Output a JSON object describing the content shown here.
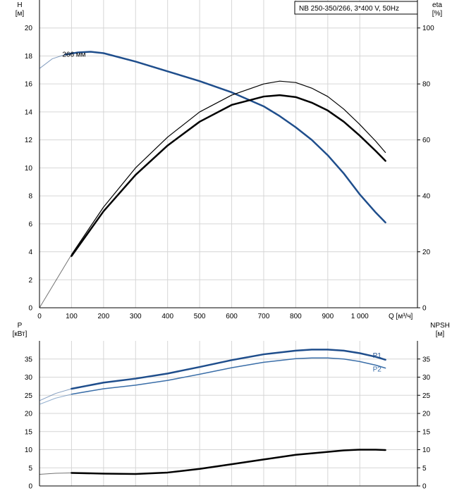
{
  "legend_text": "NB 250-350/266, 3*400 V, 50Hz",
  "chart_data": [
    {
      "type": "line",
      "x_label": "Q [м³/ч]",
      "x_ticks": [
        "0",
        "100",
        "200",
        "300",
        "400",
        "500",
        "600",
        "700",
        "800",
        "900",
        "1 000"
      ],
      "xlim": [
        0,
        1180
      ],
      "grid": true,
      "left_axis": {
        "label": [
          "H",
          "[м]"
        ],
        "ylim": [
          0,
          22
        ],
        "ticks": [
          0,
          2,
          4,
          6,
          8,
          10,
          12,
          14,
          16,
          18,
          20
        ]
      },
      "right_axis": {
        "label": [
          "eta",
          "[%]"
        ],
        "ylim": [
          0,
          110
        ],
        "ticks": [
          0,
          20,
          40,
          60,
          80,
          100
        ]
      },
      "series": [
        {
          "name": "266 мм",
          "axis": "left",
          "color": "#1f4e8c",
          "width": 2.5,
          "extension_left": {
            "x": [
              0,
              40,
              80
            ],
            "y": [
              17.1,
              17.8,
              18.1
            ]
          },
          "x": [
            80,
            120,
            160,
            200,
            300,
            400,
            500,
            600,
            700,
            750,
            800,
            850,
            900,
            950,
            1000,
            1050,
            1080
          ],
          "y": [
            18.1,
            18.25,
            18.3,
            18.2,
            17.6,
            16.9,
            16.2,
            15.4,
            14.4,
            13.7,
            12.9,
            12.0,
            10.9,
            9.6,
            8.1,
            6.8,
            6.1
          ]
        },
        {
          "axis": "right",
          "color": "#000000",
          "width": 1.2,
          "extension_left": {
            "x": [
              0,
              100
            ],
            "y": [
              0,
              19
            ]
          },
          "x": [
            100,
            200,
            300,
            400,
            500,
            600,
            700,
            750,
            800,
            850,
            900,
            950,
            1000,
            1050,
            1080
          ],
          "y": [
            19,
            36,
            50,
            61,
            70,
            76,
            80,
            81,
            80.5,
            78.5,
            75.5,
            71,
            65.5,
            59.5,
            55.5
          ]
        },
        {
          "axis": "right",
          "color": "#000000",
          "width": 2.5,
          "x": [
            100,
            200,
            300,
            400,
            500,
            600,
            700,
            750,
            800,
            850,
            900,
            950,
            1000,
            1050,
            1080
          ],
          "y": [
            18.5,
            34.5,
            47.5,
            58,
            66.5,
            72.5,
            75.5,
            76,
            75.3,
            73.3,
            70.5,
            66.5,
            61.5,
            56,
            52.5
          ]
        }
      ]
    },
    {
      "type": "line",
      "x_ticks": [
        "0",
        "100",
        "200",
        "300",
        "400",
        "500",
        "600",
        "700",
        "800",
        "900",
        "1 000"
      ],
      "xlim": [
        0,
        1180
      ],
      "grid": true,
      "left_axis": {
        "label": [
          "P",
          "[кВт]"
        ],
        "ylim": [
          0,
          40
        ],
        "ticks": [
          0,
          5,
          10,
          15,
          20,
          25,
          30,
          35
        ]
      },
      "right_axis": {
        "label": [
          "NPSH",
          "[м]"
        ],
        "ylim": [
          0,
          40
        ],
        "ticks": [
          0,
          5,
          10,
          15,
          20,
          25,
          30,
          35
        ]
      },
      "series": [
        {
          "name": "P1",
          "axis": "left",
          "color": "#1f4e8c",
          "width": 2.5,
          "label_color": "#1f4e8c",
          "extension_left": {
            "x": [
              0,
              50,
              100
            ],
            "y": [
              23.5,
              25.5,
              26.8
            ]
          },
          "x": [
            100,
            200,
            300,
            400,
            500,
            600,
            700,
            800,
            850,
            900,
            950,
            1000,
            1050,
            1080
          ],
          "y": [
            26.8,
            28.5,
            29.6,
            31,
            32.8,
            34.7,
            36.3,
            37.3,
            37.6,
            37.6,
            37.3,
            36.6,
            35.6,
            34.8
          ]
        },
        {
          "name": "P2",
          "axis": "left",
          "color": "#3a6ea8",
          "width": 1.5,
          "label_color": "#3a6ea8",
          "extension_left": {
            "x": [
              0,
              50,
              100
            ],
            "y": [
              22.5,
              24.2,
              25.3
            ]
          },
          "x": [
            100,
            200,
            300,
            400,
            500,
            600,
            700,
            800,
            850,
            900,
            950,
            1000,
            1050,
            1080
          ],
          "y": [
            25.3,
            26.8,
            27.8,
            29.1,
            30.8,
            32.6,
            34.1,
            35.1,
            35.3,
            35.3,
            35,
            34.3,
            33.3,
            32.5
          ]
        },
        {
          "axis": "right",
          "color": "#000000",
          "width": 2.5,
          "extension_left": {
            "x": [
              0,
              50,
              100
            ],
            "y": [
              3.2,
              3.5,
              3.6
            ]
          },
          "x": [
            100,
            200,
            300,
            400,
            500,
            600,
            700,
            800,
            900,
            950,
            1000,
            1050,
            1080
          ],
          "y": [
            3.6,
            3.4,
            3.3,
            3.7,
            4.7,
            6.0,
            7.3,
            8.6,
            9.4,
            9.8,
            10.0,
            10.0,
            9.9
          ]
        }
      ]
    }
  ]
}
